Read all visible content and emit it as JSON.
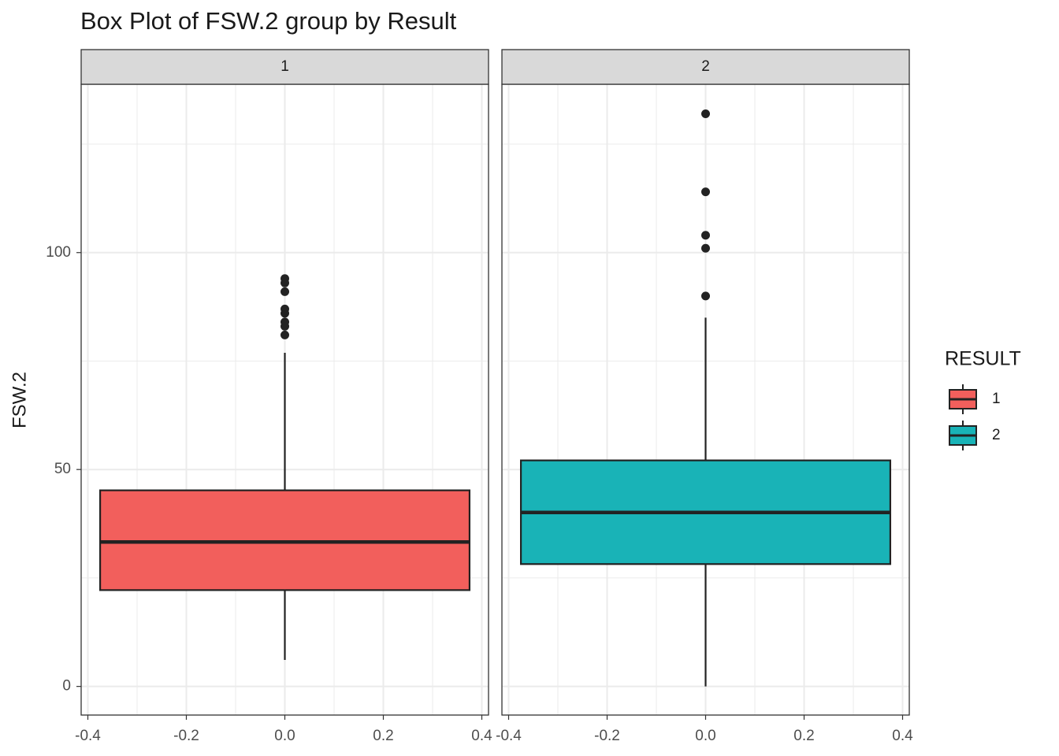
{
  "chart_data": {
    "type": "box",
    "title": "Box Plot of FSW.2 group by Result",
    "y_label": "FSW.2",
    "legend_title": "RESULT",
    "ylim": [
      -6.6,
      138.8
    ],
    "yticks": [
      0,
      50,
      100
    ],
    "xlim": [
      -0.4136,
      0.4136
    ],
    "xticks": [
      -0.4,
      -0.2,
      {
        "value": 0,
        "label": "0.0"
      },
      0.2,
      0.4
    ],
    "grid": true,
    "series": [
      {
        "name": "1",
        "color": "#f25f5c",
        "x": 0,
        "whisker_low": 6.1,
        "q1": 22.2,
        "median": 33.3,
        "q3": 45.2,
        "whisker_high": 76.9,
        "outliers": [
          94,
          93,
          91,
          87,
          86,
          84,
          83,
          81
        ]
      },
      {
        "name": "2",
        "color": "#19b3b7",
        "x": 0,
        "whisker_low": 0,
        "q1": 28.2,
        "median": 40.1,
        "q3": 52.1,
        "whisker_high": 85,
        "outliers": [
          132,
          114,
          104,
          101,
          90
        ]
      }
    ]
  }
}
